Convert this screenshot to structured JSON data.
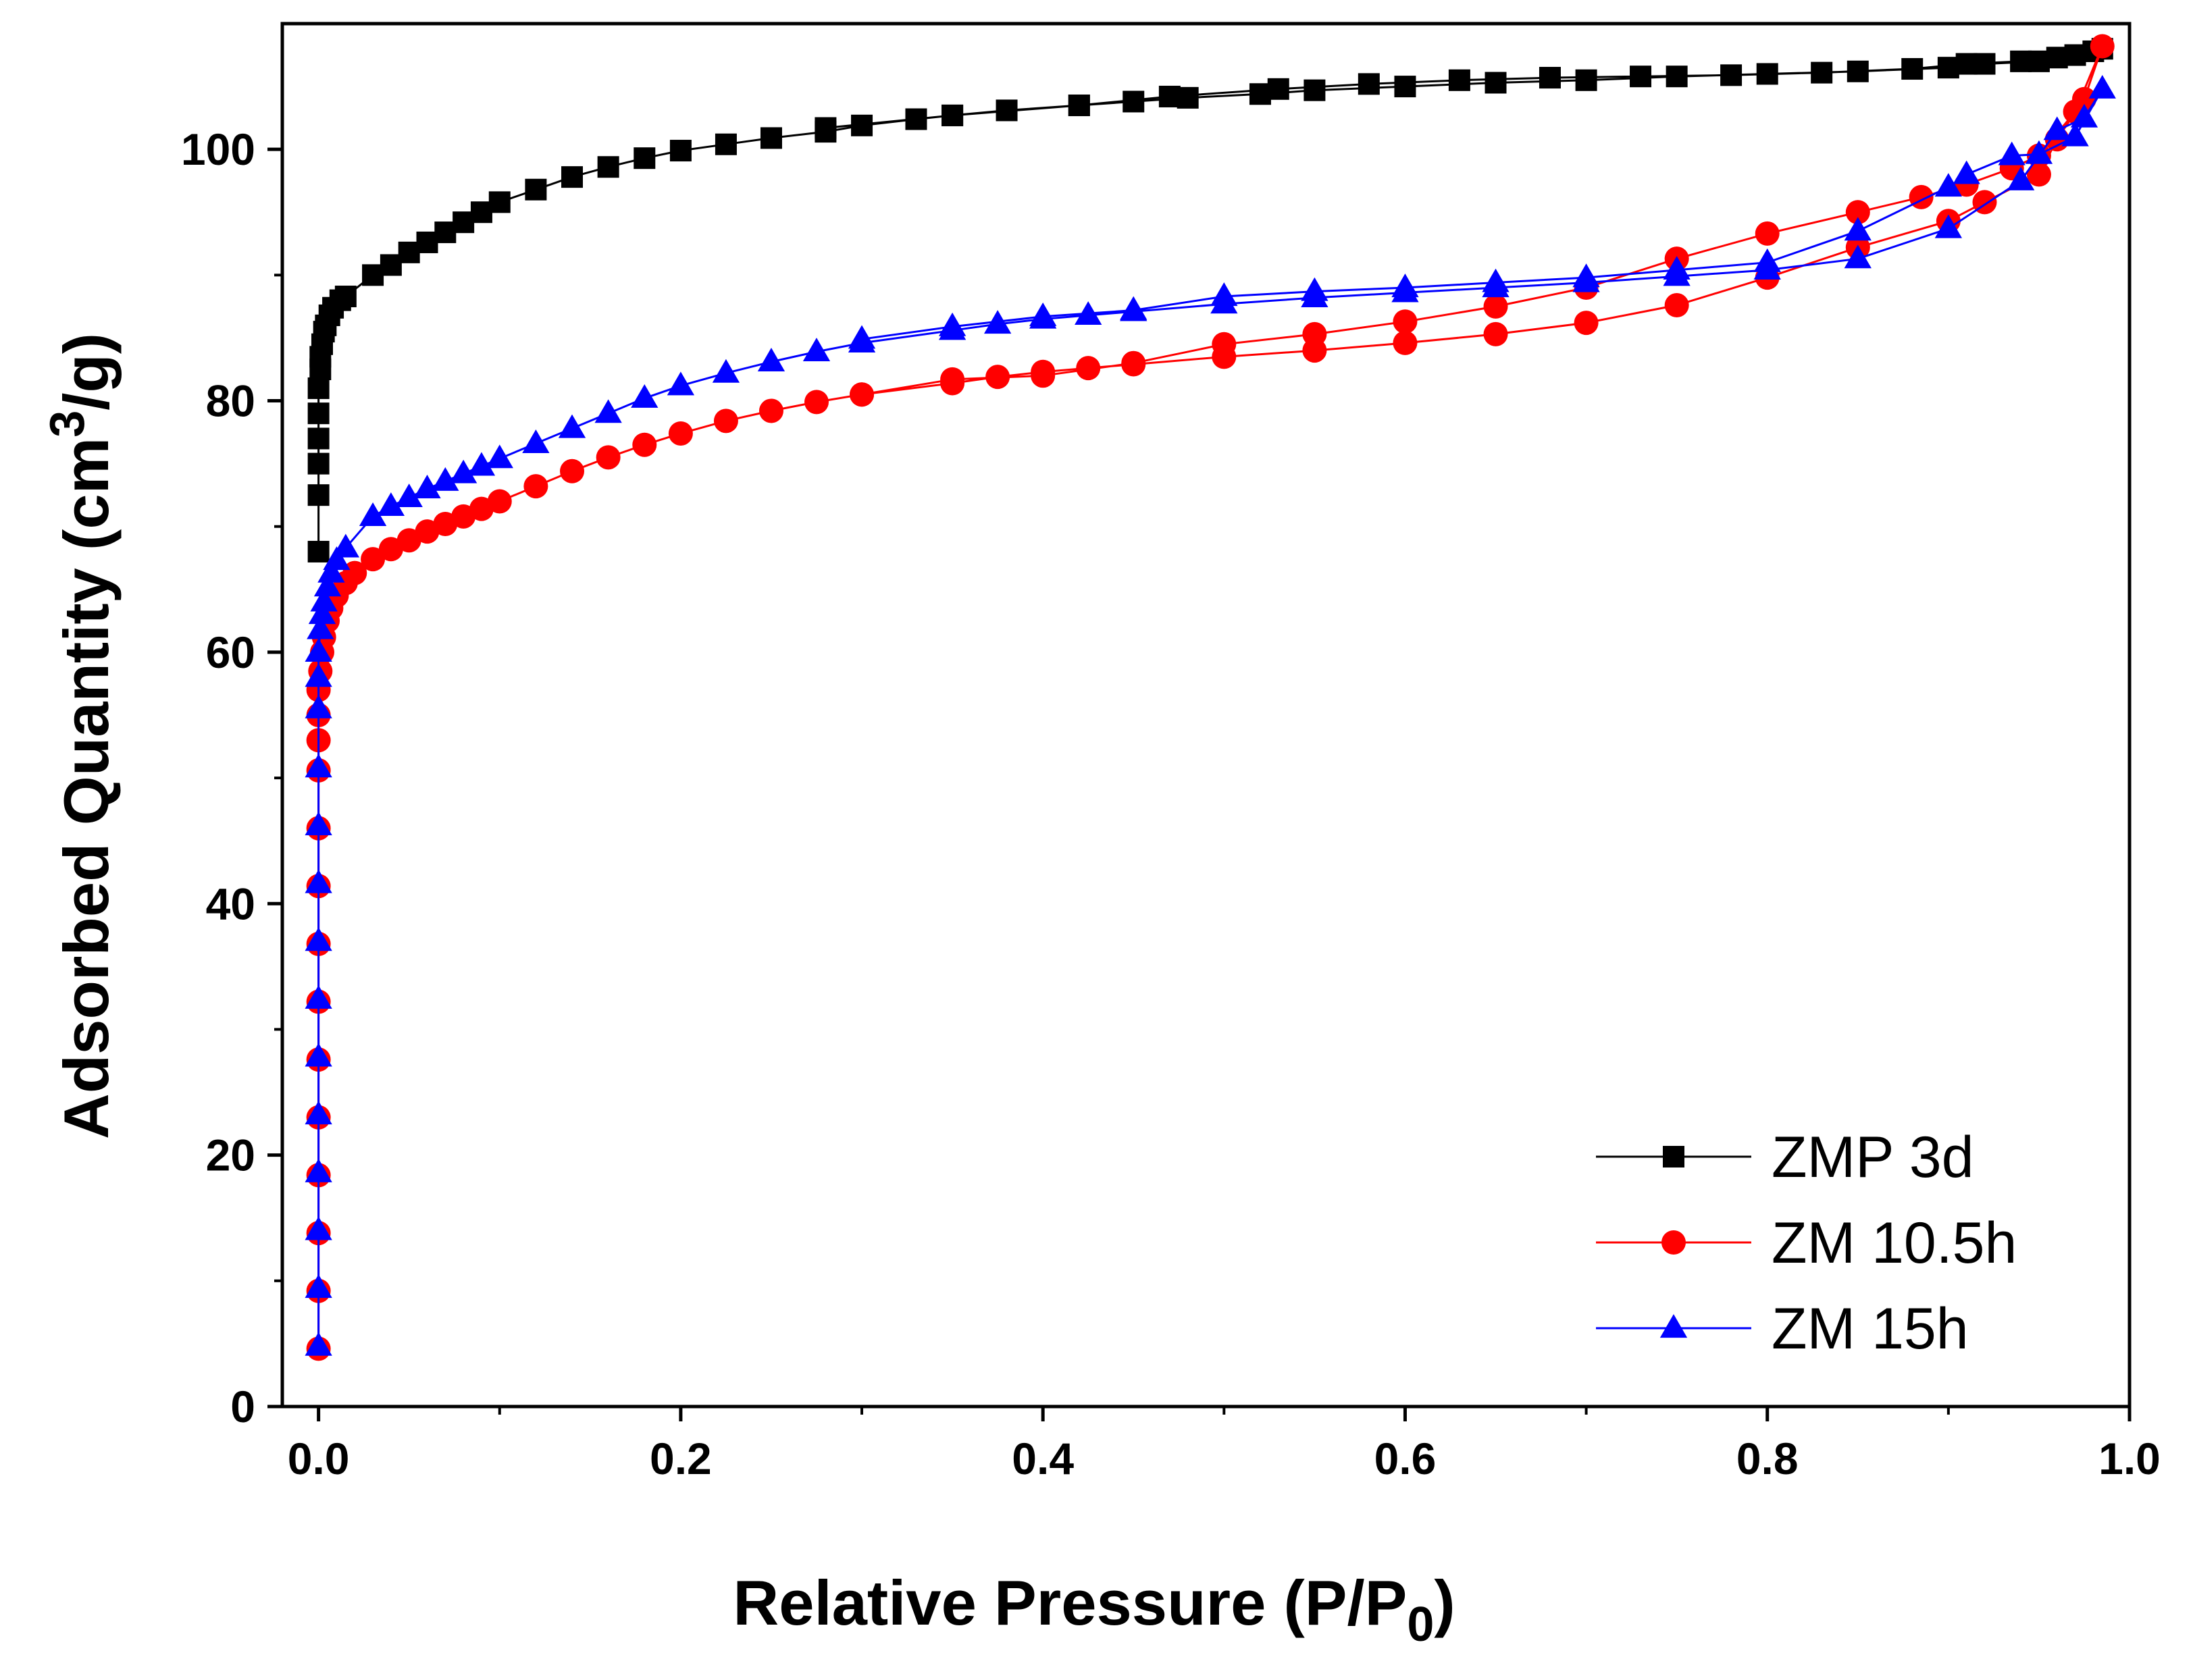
{
  "chart_data": {
    "type": "scatter",
    "title": "",
    "xlabel": "Relative Pressure (P/P0)",
    "xlabel_parts": {
      "main": "Relative Pressure (P/P",
      "sub": "0",
      "close": ")"
    },
    "ylabel": "Adsorbed Quantity (cm3/g)",
    "ylabel_parts": {
      "main": "Adsorbed Quantity (cm",
      "sup": "3",
      "close": "/g)"
    },
    "xlim": [
      -0.02,
      1.0
    ],
    "ylim": [
      0,
      110
    ],
    "x_ticks": [
      0.0,
      0.2,
      0.4,
      0.6,
      0.8,
      1.0
    ],
    "x_tick_labels": [
      "0.0",
      "0.2",
      "0.4",
      "0.6",
      "0.8",
      "1.0"
    ],
    "y_ticks": [
      0,
      20,
      40,
      60,
      80,
      100
    ],
    "y_tick_labels": [
      "0",
      "20",
      "40",
      "60",
      "80",
      "100"
    ],
    "grid": false,
    "legend_position": "bottom-right",
    "series": [
      {
        "name": "ZMP 3d",
        "color": "#000000",
        "marker": "square",
        "x": [
          0.0,
          0.0,
          0.0,
          0.0,
          0.0,
          0.0,
          0.001,
          0.001,
          0.002,
          0.003,
          0.004,
          0.006,
          0.008,
          0.012,
          0.015,
          0.03,
          0.04,
          0.05,
          0.06,
          0.07,
          0.08,
          0.09,
          0.1,
          0.12,
          0.14,
          0.16,
          0.18,
          0.2,
          0.225,
          0.25,
          0.28,
          0.3,
          0.33,
          0.35,
          0.38,
          0.42,
          0.45,
          0.48,
          0.52,
          0.55,
          0.6,
          0.65,
          0.7,
          0.75,
          0.8,
          0.85,
          0.9,
          0.92,
          0.95,
          0.97,
          0.985,
          0.98,
          0.96,
          0.94,
          0.91,
          0.88,
          0.83,
          0.78,
          0.73,
          0.68,
          0.63,
          0.58,
          0.53,
          0.47,
          0.42,
          0.35,
          0.28
        ],
        "y": [
          68.0,
          72.5,
          75.0,
          77.0,
          79.0,
          81.0,
          82.5,
          83.5,
          84.5,
          85.5,
          86.0,
          86.8,
          87.4,
          88.0,
          88.3,
          90.0,
          90.8,
          91.8,
          92.6,
          93.4,
          94.2,
          95.0,
          95.8,
          96.8,
          97.8,
          98.6,
          99.3,
          99.9,
          100.4,
          100.9,
          101.4,
          101.9,
          102.4,
          102.7,
          103.1,
          103.5,
          103.8,
          104.1,
          104.4,
          104.7,
          105.0,
          105.3,
          105.5,
          105.8,
          106.0,
          106.2,
          106.5,
          106.8,
          107.0,
          107.5,
          108.0,
          107.8,
          107.3,
          107.0,
          106.8,
          106.4,
          106.1,
          105.9,
          105.8,
          105.7,
          105.5,
          105.2,
          104.8,
          104.2,
          103.5,
          102.7,
          101.7
        ]
      },
      {
        "name": "ZM 10.5h",
        "color": "#ff0000",
        "marker": "circle",
        "x": [
          0.0,
          0.0,
          0.0,
          0.0,
          0.0,
          0.0,
          0.0,
          0.0,
          0.0,
          0.0,
          0.0,
          0.0,
          0.0,
          0.0,
          0.001,
          0.002,
          0.003,
          0.005,
          0.007,
          0.01,
          0.015,
          0.02,
          0.03,
          0.04,
          0.05,
          0.06,
          0.07,
          0.08,
          0.09,
          0.1,
          0.12,
          0.14,
          0.16,
          0.18,
          0.2,
          0.225,
          0.25,
          0.275,
          0.3,
          0.35,
          0.375,
          0.4,
          0.425,
          0.45,
          0.5,
          0.55,
          0.6,
          0.65,
          0.7,
          0.75,
          0.8,
          0.85,
          0.9,
          0.92,
          0.95,
          0.96,
          0.975,
          0.985,
          0.97,
          0.95,
          0.935,
          0.91,
          0.885,
          0.85,
          0.8,
          0.75,
          0.7,
          0.65,
          0.6,
          0.55,
          0.5,
          0.45,
          0.4,
          0.35,
          0.3
        ],
        "y": [
          4.6,
          9.2,
          13.8,
          18.4,
          23.0,
          27.6,
          32.2,
          36.8,
          41.4,
          46.0,
          50.6,
          53.0,
          55.0,
          57.0,
          58.5,
          60.0,
          61.2,
          62.5,
          63.5,
          64.5,
          65.5,
          66.3,
          67.4,
          68.2,
          68.9,
          69.6,
          70.2,
          70.8,
          71.4,
          72.0,
          73.2,
          74.4,
          75.5,
          76.5,
          77.4,
          78.4,
          79.2,
          79.9,
          80.5,
          81.4,
          81.9,
          82.3,
          82.6,
          82.9,
          83.5,
          84.0,
          84.6,
          85.3,
          86.2,
          87.6,
          89.8,
          92.2,
          94.3,
          95.8,
          98.0,
          100.8,
          104.0,
          108.2,
          103.0,
          99.5,
          98.5,
          97.2,
          96.2,
          95.0,
          93.3,
          91.3,
          89.0,
          87.5,
          86.3,
          85.3,
          84.5,
          83.0,
          82.0,
          81.7,
          80.5
        ]
      },
      {
        "name": "ZM 15h",
        "color": "#0000ff",
        "marker": "triangle",
        "x": [
          0.0,
          0.0,
          0.0,
          0.0,
          0.0,
          0.0,
          0.0,
          0.0,
          0.0,
          0.0,
          0.0,
          0.0,
          0.0,
          0.0,
          0.001,
          0.002,
          0.003,
          0.005,
          0.007,
          0.01,
          0.015,
          0.03,
          0.04,
          0.05,
          0.06,
          0.07,
          0.08,
          0.09,
          0.1,
          0.12,
          0.14,
          0.16,
          0.18,
          0.2,
          0.225,
          0.25,
          0.275,
          0.3,
          0.35,
          0.375,
          0.4,
          0.425,
          0.45,
          0.5,
          0.55,
          0.6,
          0.65,
          0.7,
          0.75,
          0.8,
          0.85,
          0.9,
          0.94,
          0.96,
          0.975,
          0.985,
          0.97,
          0.95,
          0.935,
          0.91,
          0.9,
          0.85,
          0.8,
          0.75,
          0.7,
          0.65,
          0.6,
          0.55,
          0.5,
          0.45,
          0.4,
          0.35,
          0.3
        ],
        "y": [
          4.8,
          9.4,
          14.0,
          18.6,
          23.2,
          27.8,
          32.4,
          37.0,
          41.6,
          46.2,
          50.8,
          55.5,
          58.0,
          60.0,
          61.8,
          63.0,
          64.0,
          65.2,
          66.3,
          67.3,
          68.3,
          70.8,
          71.6,
          72.3,
          73.0,
          73.6,
          74.2,
          74.8,
          75.4,
          76.6,
          77.8,
          79.0,
          80.2,
          81.2,
          82.2,
          83.1,
          83.9,
          84.6,
          85.6,
          86.1,
          86.5,
          86.8,
          87.1,
          87.7,
          88.2,
          88.6,
          89.0,
          89.4,
          89.9,
          90.4,
          91.3,
          93.7,
          97.5,
          101.5,
          102.5,
          104.8,
          101.0,
          99.6,
          99.5,
          98.0,
          97.0,
          93.5,
          91.0,
          90.4,
          89.8,
          89.4,
          89.0,
          88.7,
          88.3,
          87.2,
          86.7,
          85.9,
          84.9
        ]
      }
    ]
  }
}
